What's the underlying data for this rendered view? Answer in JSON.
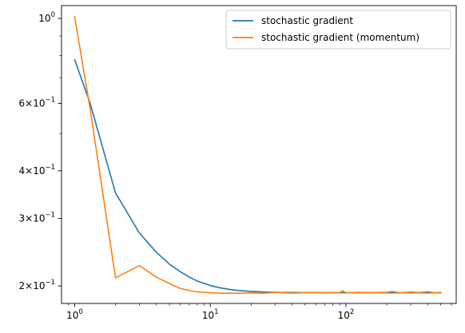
{
  "chart_data": {
    "type": "line",
    "title": "",
    "xlabel": "",
    "ylabel": "",
    "xscale": "log",
    "yscale": "log",
    "xlim": [
      0.8,
      650
    ],
    "ylim": [
      0.18,
      1.08
    ],
    "grid": false,
    "legend_position": "top-right",
    "x_ticks": [
      {
        "value": 1,
        "base": "10",
        "exp": "0"
      },
      {
        "value": 10,
        "base": "10",
        "exp": "1"
      },
      {
        "value": 100,
        "base": "10",
        "exp": "2"
      }
    ],
    "y_ticks": [
      {
        "value": 1.0,
        "base": "10",
        "exp": "0",
        "coef": ""
      },
      {
        "value": 0.6,
        "base": "10",
        "exp": "−1",
        "coef": "6×"
      },
      {
        "value": 0.4,
        "base": "10",
        "exp": "−1",
        "coef": "4×"
      },
      {
        "value": 0.3,
        "base": "10",
        "exp": "−1",
        "coef": "3×"
      },
      {
        "value": 0.2,
        "base": "10",
        "exp": "−1",
        "coef": "2×"
      }
    ],
    "series": [
      {
        "name": "stochastic gradient",
        "color": "#1f77b4",
        "x": [
          1,
          1.3,
          2,
          3,
          4,
          5,
          6,
          7,
          8,
          10,
          12,
          15,
          20,
          25,
          30,
          40,
          50,
          70,
          100,
          150,
          200,
          300,
          400,
          500
        ],
        "y": [
          0.78,
          0.6,
          0.35,
          0.275,
          0.245,
          0.228,
          0.218,
          0.211,
          0.206,
          0.2005,
          0.1975,
          0.195,
          0.1935,
          0.1928,
          0.1925,
          0.1922,
          0.1921,
          0.192,
          0.192,
          0.192,
          0.192,
          0.192,
          0.192,
          0.192
        ]
      },
      {
        "name": "stochastic gradient (momentum)",
        "color": "#ff7f0e",
        "x": [
          1,
          1.3,
          2,
          3,
          4,
          5,
          6,
          7,
          8,
          9,
          10,
          12,
          15,
          20,
          25,
          30,
          40,
          50,
          70,
          90,
          95,
          100,
          120,
          150,
          200,
          220,
          250,
          300,
          350,
          400,
          450,
          500
        ],
        "y": [
          1.01,
          0.58,
          0.21,
          0.226,
          0.211,
          0.203,
          0.197,
          0.1945,
          0.193,
          0.1925,
          0.192,
          0.1915,
          0.1913,
          0.1918,
          0.1915,
          0.1925,
          0.1915,
          0.192,
          0.1918,
          0.1922,
          0.1945,
          0.1918,
          0.1925,
          0.192,
          0.1925,
          0.1935,
          0.1918,
          0.1928,
          0.1922,
          0.1932,
          0.192,
          0.1925
        ]
      }
    ]
  }
}
